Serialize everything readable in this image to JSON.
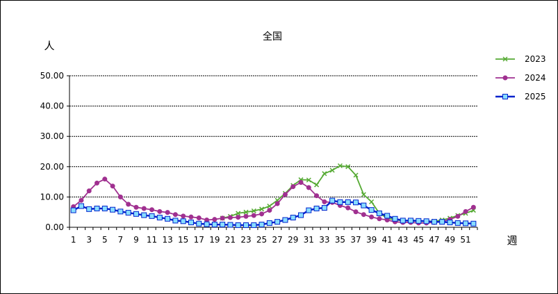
{
  "chart_data": {
    "type": "line",
    "title": "全国",
    "ylabel": "人",
    "xlabel": "週",
    "ylim": [
      0,
      50
    ],
    "ytick_labels": [
      "0.00",
      "10.00",
      "20.00",
      "30.00",
      "40.00",
      "50.00"
    ],
    "xtick_labels": [
      "1",
      "3",
      "5",
      "7",
      "9",
      "11",
      "13",
      "15",
      "17",
      "19",
      "21",
      "23",
      "25",
      "27",
      "29",
      "31",
      "33",
      "35",
      "37",
      "39",
      "41",
      "43",
      "45",
      "47",
      "49",
      "51"
    ],
    "grid": true,
    "legend_position": "right",
    "series": [
      {
        "name": "2023",
        "color": "#55AA33",
        "marker": "x",
        "x": [
          20,
          21,
          22,
          23,
          24,
          25,
          26,
          27,
          28,
          29,
          30,
          31,
          32,
          33,
          34,
          35,
          36,
          37,
          38,
          39,
          40,
          41,
          42,
          43,
          44,
          45,
          46,
          47,
          48,
          49,
          50,
          51,
          52
        ],
        "values": [
          3.0,
          3.6,
          4.6,
          5.0,
          5.4,
          6.0,
          7.0,
          8.9,
          11.2,
          13.8,
          15.7,
          15.6,
          14.0,
          17.7,
          18.8,
          20.3,
          20.0,
          17.2,
          10.8,
          8.4,
          4.6,
          3.0,
          2.4,
          2.2,
          2.1,
          2.0,
          2.0,
          2.0,
          2.4,
          3.0,
          3.9,
          4.6,
          5.6
        ]
      },
      {
        "name": "2024",
        "color": "#A03090",
        "marker": "circle",
        "x": [
          1,
          2,
          3,
          4,
          5,
          6,
          7,
          8,
          9,
          10,
          11,
          12,
          13,
          14,
          15,
          16,
          17,
          18,
          19,
          20,
          21,
          22,
          23,
          24,
          25,
          26,
          27,
          28,
          29,
          30,
          31,
          32,
          33,
          34,
          35,
          36,
          37,
          38,
          39,
          40,
          41,
          42,
          43,
          44,
          45,
          46,
          47,
          48,
          49,
          50,
          51,
          52
        ],
        "values": [
          6.8,
          8.9,
          12.0,
          14.6,
          15.9,
          13.6,
          10.0,
          7.6,
          6.6,
          6.2,
          5.8,
          5.2,
          4.9,
          4.2,
          3.7,
          3.4,
          3.1,
          2.4,
          2.6,
          3.0,
          3.2,
          3.3,
          3.6,
          3.9,
          4.4,
          5.6,
          7.8,
          10.8,
          13.4,
          14.8,
          13.1,
          10.4,
          8.4,
          8.2,
          7.2,
          6.4,
          5.1,
          4.2,
          3.4,
          2.8,
          2.4,
          1.8,
          1.6,
          1.6,
          1.4,
          1.4,
          1.6,
          1.9,
          2.6,
          3.6,
          5.2,
          6.6
        ]
      },
      {
        "name": "2025",
        "color": "#0022CC",
        "marker": "square",
        "x": [
          1,
          2,
          3,
          4,
          5,
          6,
          7,
          8,
          9,
          10,
          11,
          12,
          13,
          14,
          15,
          16,
          17,
          18,
          19,
          20,
          21,
          22,
          23,
          24,
          25,
          26,
          27,
          28,
          29,
          30,
          31,
          32,
          33,
          34,
          35,
          36,
          37,
          38,
          39,
          40,
          41,
          42,
          43,
          44,
          45,
          46,
          47,
          48,
          49,
          50,
          51,
          52
        ],
        "values": [
          5.6,
          7.0,
          6.0,
          6.2,
          6.2,
          5.8,
          5.2,
          4.8,
          4.4,
          4.0,
          3.7,
          3.2,
          2.8,
          2.2,
          2.0,
          1.6,
          1.2,
          1.0,
          0.9,
          0.9,
          0.8,
          0.7,
          0.7,
          0.7,
          0.9,
          1.4,
          1.8,
          2.4,
          3.2,
          4.0,
          5.6,
          6.2,
          6.4,
          8.8,
          8.3,
          8.3,
          8.2,
          7.2,
          5.7,
          4.6,
          3.8,
          2.8,
          2.2,
          2.2,
          2.1,
          2.0,
          1.8,
          1.8,
          1.6,
          1.4,
          1.3,
          1.2
        ]
      }
    ]
  }
}
